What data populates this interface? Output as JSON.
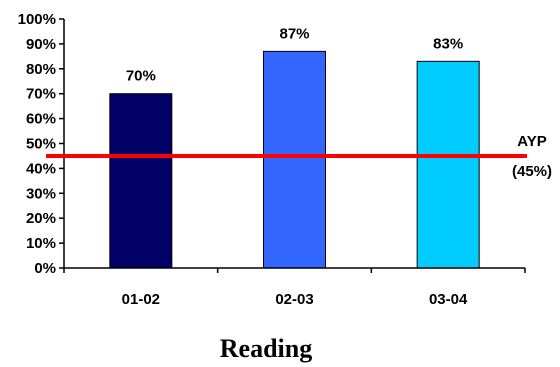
{
  "chart_data": {
    "type": "bar",
    "categories": [
      "01-02",
      "02-03",
      "03-04"
    ],
    "values": [
      70,
      87,
      83
    ],
    "data_labels": [
      "70%",
      "87%",
      "83%"
    ],
    "bar_colors": [
      "#000066",
      "#3366ff",
      "#00ccff"
    ],
    "ylim": [
      0,
      100
    ],
    "yticks": [
      "0%",
      "10%",
      "20%",
      "30%",
      "40%",
      "50%",
      "60%",
      "70%",
      "80%",
      "90%",
      "100%"
    ],
    "xlabel": "Reading",
    "ylabel": "",
    "grid": false,
    "reference_line": {
      "value": 45,
      "label_line1": "AYP",
      "label_line2": "(45%)",
      "color": "#ff0000"
    }
  }
}
